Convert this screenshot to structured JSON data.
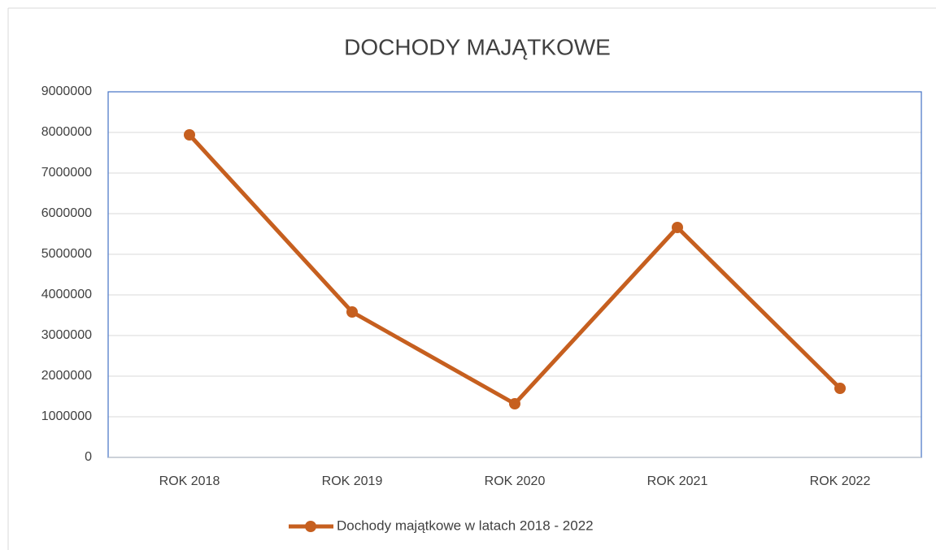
{
  "chart_data": {
    "type": "line",
    "title": "DOCHODY MAJĄTKOWE",
    "categories": [
      "ROK 2018",
      "ROK 2019",
      "ROK 2020",
      "ROK 2021",
      "ROK 2022"
    ],
    "series": [
      {
        "name": "Dochody majątkowe w latach 2018 - 2022",
        "color": "#c65f1f",
        "values": [
          7940000,
          3580000,
          1320000,
          5660000,
          1700000
        ]
      }
    ],
    "ylim": [
      0,
      9000000
    ],
    "yticks": [
      0,
      1000000,
      2000000,
      3000000,
      4000000,
      5000000,
      6000000,
      7000000,
      8000000,
      9000000
    ],
    "grid": true,
    "legend": "bottom"
  }
}
